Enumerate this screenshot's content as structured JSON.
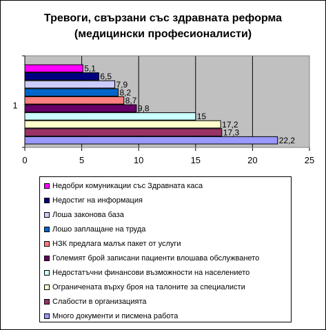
{
  "chart_data": {
    "type": "bar",
    "orientation": "horizontal",
    "title": "Тревоги, свързани със здравната реформа",
    "subtitle": "(медицински професионалисти)",
    "categories": [
      "1"
    ],
    "xlim": [
      0,
      25
    ],
    "x_ticks": [
      "0",
      "5",
      "10",
      "15",
      "20",
      "25"
    ],
    "grid": true,
    "legend_position": "bottom",
    "series": [
      {
        "name": "Недобри комуникации със Здравната каса",
        "value": 5.1,
        "label": "5,1",
        "color": "#ff00ff"
      },
      {
        "name": "Недостиг на информация",
        "value": 6.5,
        "label": "6,5",
        "color": "#000080"
      },
      {
        "name": "Лоша законова база",
        "value": 7.9,
        "label": "7,9",
        "color": "#ccccff"
      },
      {
        "name": "Лошо заплащане на труда",
        "value": 8.2,
        "label": "8,2",
        "color": "#0066cc"
      },
      {
        "name": "НЗК предлага малък пакет от услуги",
        "value": 8.7,
        "label": "8,7",
        "color": "#ff8080"
      },
      {
        "name": "Големият брой записани пациенти влошава обслужването",
        "value": 9.8,
        "label": "9,8",
        "color": "#660066"
      },
      {
        "name": "Недостатъчни финансови възможности на населението",
        "value": 15,
        "label": "15",
        "color": "#ccffff"
      },
      {
        "name": "Ограничената върху броя на талоните за специалисти",
        "value": 17.2,
        "label": "17,2",
        "color": "#ffffcc"
      },
      {
        "name": "Слабости в организацията",
        "value": 17.3,
        "label": "17,3",
        "color": "#993366"
      },
      {
        "name": "Много документи и писмена работа",
        "value": 22.2,
        "label": "22,2",
        "color": "#9999ff"
      }
    ],
    "colors": {
      "plot_background": "#c0c0c0",
      "gridline": "#000000"
    }
  }
}
